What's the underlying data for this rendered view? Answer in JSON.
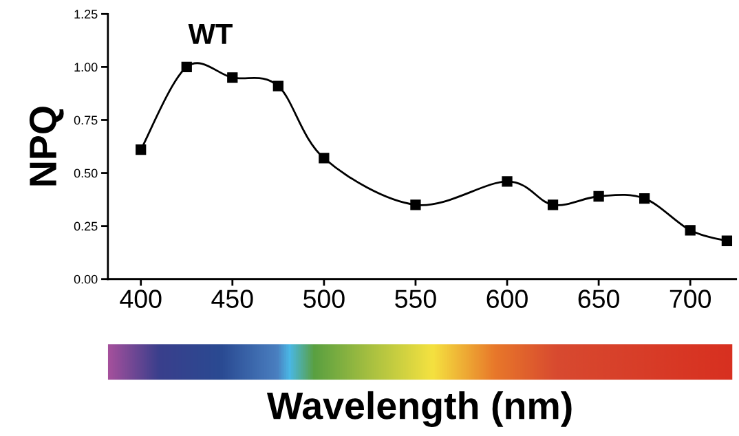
{
  "chart_data": {
    "type": "line",
    "xlabel": "Wavelength (nm)",
    "ylabel": "NPQ",
    "x": [
      400,
      425,
      450,
      475,
      500,
      550,
      600,
      625,
      650,
      675,
      700,
      720
    ],
    "series": [
      {
        "name": "WT",
        "color": "#000000",
        "values": [
          0.61,
          1.0,
          0.95,
          0.91,
          0.57,
          0.35,
          0.46,
          0.35,
          0.39,
          0.38,
          0.23,
          0.18
        ]
      }
    ],
    "xlim": [
      382,
      725
    ],
    "xticks": [
      400,
      450,
      500,
      550,
      600,
      650,
      700
    ],
    "ylim": [
      0,
      1.25
    ],
    "yticks": [
      {
        "value": 0,
        "label": "0.00"
      },
      {
        "value": 0.25,
        "label": "0.25"
      },
      {
        "value": 0.5,
        "label": "0.50"
      },
      {
        "value": 0.75,
        "label": "0.75"
      },
      {
        "value": 1.0,
        "label": "1.00"
      },
      {
        "value": 1.25,
        "label": "1.25"
      }
    ],
    "grid": false,
    "marker": "square",
    "line_style": "solid"
  }
}
